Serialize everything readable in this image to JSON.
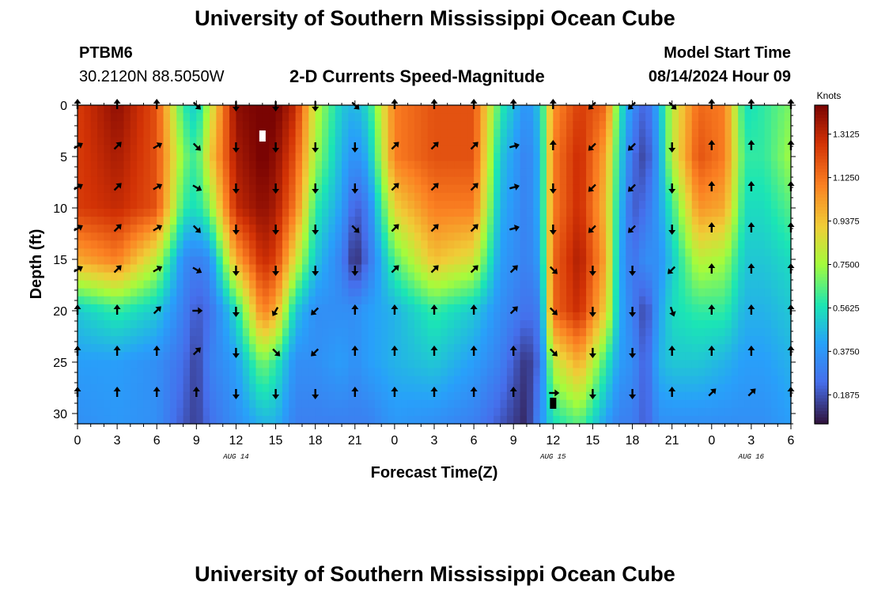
{
  "header": {
    "title": "University of Southern Mississippi Ocean Cube",
    "station": "PTBM6",
    "coordinates": "30.2120N  88.5050W",
    "subtitle": "2-D Currents Speed-Magnitude",
    "model_start_label": "Model Start Time",
    "model_start_value": "08/14/2024 Hour 09"
  },
  "footer": {
    "title": "University of Southern Mississippi Ocean Cube"
  },
  "chart_data": {
    "type": "heatmap",
    "title": "2-D Currents Speed-Magnitude",
    "xlabel": "Forecast Time(Z)",
    "ylabel": "Depth (ft)",
    "x_range_hours": [
      0,
      54
    ],
    "y_range_ft": [
      0,
      31
    ],
    "y_inverted": true,
    "x_tick_labels": [
      "0",
      "3",
      "6",
      "9",
      "12",
      "15",
      "18",
      "21",
      "0",
      "3",
      "6",
      "9",
      "12",
      "15",
      "18",
      "21",
      "0",
      "3",
      "6"
    ],
    "y_ticks": [
      0,
      5,
      10,
      15,
      20,
      25,
      30
    ],
    "date_labels": [
      {
        "hour": 12,
        "text": "AUG 14"
      },
      {
        "hour": 36,
        "text": "AUG 15"
      },
      {
        "hour": 51,
        "text": "AUG 16"
      }
    ],
    "colorbar": {
      "label": "Knots",
      "min": 0.0625,
      "max": 1.4375,
      "tick_values": [
        0.1875,
        0.375,
        0.5625,
        0.75,
        0.9375,
        1.125,
        1.3125
      ],
      "tick_labels": [
        "0.1875",
        "0.3750",
        "0.5625",
        "0.7500",
        "0.9375",
        "1.1250",
        "1.3125"
      ]
    },
    "speed_profile_knots": {
      "depths_ft": [
        0,
        5,
        10,
        15,
        20,
        25,
        31
      ],
      "columns": [
        {
          "hour": 0,
          "speeds": [
            1.25,
            1.25,
            1.25,
            1.0,
            0.5,
            0.4,
            0.35
          ]
        },
        {
          "hour": 3,
          "speeds": [
            1.4,
            1.35,
            1.3,
            1.1,
            0.6,
            0.4,
            0.38
          ]
        },
        {
          "hour": 6,
          "speeds": [
            1.2,
            1.2,
            1.2,
            0.8,
            0.5,
            0.35,
            0.35
          ]
        },
        {
          "hour": 8,
          "speeds": [
            0.6,
            0.7,
            0.6,
            0.35,
            0.3,
            0.25,
            0.2
          ]
        },
        {
          "hour": 9,
          "speeds": [
            0.5,
            0.6,
            0.55,
            0.3,
            0.2,
            0.15,
            0.15
          ]
        },
        {
          "hour": 10,
          "speeds": [
            0.8,
            0.9,
            0.7,
            0.35,
            0.25,
            0.3,
            0.25
          ]
        },
        {
          "hour": 12,
          "speeds": [
            1.4,
            1.35,
            1.3,
            1.0,
            0.55,
            0.4,
            0.35
          ]
        },
        {
          "hour": 14,
          "speeds": [
            1.45,
            1.45,
            1.4,
            1.3,
            1.1,
            0.7,
            0.45
          ]
        },
        {
          "hour": 15,
          "speeds": [
            1.45,
            1.4,
            1.35,
            1.25,
            1.0,
            0.6,
            0.45
          ]
        },
        {
          "hour": 16.5,
          "speeds": [
            1.3,
            1.2,
            1.1,
            0.85,
            0.5,
            0.35,
            0.3
          ]
        },
        {
          "hour": 18,
          "speeds": [
            0.8,
            0.75,
            0.6,
            0.5,
            0.35,
            0.35,
            0.3
          ]
        },
        {
          "hour": 20,
          "speeds": [
            0.5,
            0.45,
            0.4,
            0.3,
            0.35,
            0.4,
            0.3
          ]
        },
        {
          "hour": 21,
          "speeds": [
            0.45,
            0.35,
            0.2,
            0.1,
            0.35,
            0.35,
            0.3
          ]
        },
        {
          "hour": 22,
          "speeds": [
            0.55,
            0.45,
            0.3,
            0.25,
            0.4,
            0.4,
            0.3
          ]
        },
        {
          "hour": 24,
          "speeds": [
            1.1,
            1.1,
            0.9,
            0.65,
            0.45,
            0.45,
            0.38
          ]
        },
        {
          "hour": 27,
          "speeds": [
            1.2,
            1.2,
            1.1,
            0.95,
            0.6,
            0.5,
            0.35
          ]
        },
        {
          "hour": 30,
          "speeds": [
            1.2,
            1.2,
            1.1,
            0.85,
            0.5,
            0.4,
            0.3
          ]
        },
        {
          "hour": 32,
          "speeds": [
            0.6,
            0.5,
            0.45,
            0.4,
            0.35,
            0.3,
            0.2
          ]
        },
        {
          "hour": 34,
          "speeds": [
            0.35,
            0.3,
            0.3,
            0.3,
            0.25,
            0.12,
            0.1
          ]
        },
        {
          "hour": 35,
          "speeds": [
            0.5,
            0.45,
            0.45,
            0.4,
            0.3,
            0.25,
            0.35
          ]
        },
        {
          "hour": 36,
          "speeds": [
            1.05,
            1.1,
            1.1,
            1.15,
            1.15,
            0.8,
            0.55
          ]
        },
        {
          "hour": 38,
          "speeds": [
            1.25,
            1.3,
            1.3,
            1.35,
            1.3,
            1.0,
            0.65
          ]
        },
        {
          "hour": 40,
          "speeds": [
            1.15,
            1.0,
            0.95,
            1.0,
            0.9,
            0.6,
            0.4
          ]
        },
        {
          "hour": 41,
          "speeds": [
            0.6,
            0.55,
            0.5,
            0.45,
            0.45,
            0.4,
            0.3
          ]
        },
        {
          "hour": 42,
          "speeds": [
            0.35,
            0.25,
            0.2,
            0.25,
            0.3,
            0.35,
            0.3
          ]
        },
        {
          "hour": 43,
          "speeds": [
            0.2,
            0.15,
            0.25,
            0.35,
            0.15,
            0.2,
            0.2
          ]
        },
        {
          "hour": 44,
          "speeds": [
            0.45,
            0.4,
            0.4,
            0.35,
            0.4,
            0.45,
            0.35
          ]
        },
        {
          "hour": 45,
          "speeds": [
            0.8,
            0.8,
            0.6,
            0.5,
            0.55,
            0.5,
            0.35
          ]
        },
        {
          "hour": 47,
          "speeds": [
            1.15,
            1.2,
            1.05,
            0.8,
            0.6,
            0.5,
            0.35
          ]
        },
        {
          "hour": 49,
          "speeds": [
            1.1,
            1.1,
            1.0,
            0.75,
            0.6,
            0.45,
            0.35
          ]
        },
        {
          "hour": 50.5,
          "speeds": [
            0.55,
            0.6,
            0.55,
            0.5,
            0.45,
            0.4,
            0.35
          ]
        },
        {
          "hour": 52,
          "speeds": [
            0.6,
            0.6,
            0.55,
            0.5,
            0.45,
            0.4,
            0.35
          ]
        },
        {
          "hour": 54,
          "speeds": [
            0.7,
            0.75,
            0.65,
            0.55,
            0.5,
            0.45,
            0.4
          ]
        }
      ]
    },
    "current_vectors": {
      "hours": [
        0,
        3,
        6,
        9,
        12,
        15,
        18,
        21,
        24,
        27,
        30,
        33,
        36,
        39,
        42,
        45,
        48,
        51,
        54
      ],
      "depths_ft": [
        0,
        4,
        8,
        12,
        16,
        20,
        24,
        28
      ],
      "direction_deg_rows": [
        [
          0,
          0,
          0,
          135,
          180,
          180,
          180,
          135,
          0,
          0,
          0,
          0,
          0,
          225,
          225,
          135,
          0,
          0,
          0
        ],
        [
          60,
          45,
          60,
          135,
          180,
          180,
          180,
          180,
          45,
          45,
          45,
          75,
          0,
          225,
          225,
          180,
          0,
          0,
          0
        ],
        [
          60,
          45,
          60,
          120,
          180,
          180,
          180,
          180,
          45,
          45,
          45,
          75,
          180,
          225,
          225,
          180,
          0,
          0,
          0
        ],
        [
          60,
          45,
          60,
          135,
          180,
          180,
          180,
          135,
          45,
          45,
          45,
          75,
          180,
          225,
          225,
          180,
          0,
          0,
          0
        ],
        [
          60,
          45,
          60,
          120,
          180,
          180,
          180,
          180,
          45,
          45,
          45,
          45,
          135,
          180,
          180,
          225,
          0,
          0,
          0
        ],
        [
          0,
          0,
          45,
          90,
          180,
          210,
          225,
          0,
          0,
          0,
          0,
          45,
          135,
          180,
          180,
          160,
          0,
          0,
          0
        ],
        [
          0,
          0,
          0,
          45,
          180,
          135,
          225,
          0,
          0,
          0,
          0,
          0,
          135,
          180,
          180,
          0,
          0,
          0,
          0
        ],
        [
          0,
          0,
          0,
          0,
          180,
          180,
          180,
          0,
          0,
          0,
          0,
          0,
          90,
          180,
          180,
          0,
          45,
          45,
          0
        ]
      ]
    },
    "markers": [
      {
        "hour": 14,
        "depth_ft": 3,
        "color": "#ffffff"
      },
      {
        "hour": 36,
        "depth_ft": 29,
        "color": "#000000"
      }
    ]
  }
}
